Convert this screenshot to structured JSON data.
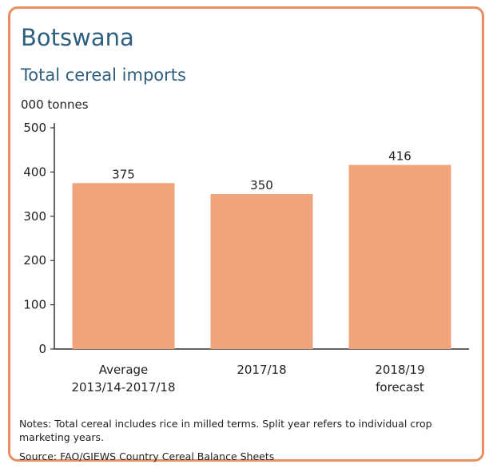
{
  "chart_data": {
    "type": "bar",
    "title": "Botswana",
    "subtitle": "Total cereal imports",
    "unit_label": "000 tonnes",
    "ylim": [
      0,
      500
    ],
    "yticks": [
      0,
      100,
      200,
      300,
      400,
      500
    ],
    "grid": false,
    "categories": [
      [
        "Average",
        "2013/14-2017/18"
      ],
      [
        "2017/18"
      ],
      [
        "2018/19",
        "forecast"
      ]
    ],
    "values": [
      375,
      350,
      416
    ],
    "data_labels": [
      "375",
      "350",
      "416"
    ],
    "bar_color": "#f0a47c"
  },
  "notes": "Notes: Total cereal includes rice in milled terms. Split year refers to individual crop marketing years.",
  "source": "Source: FAO/GIEWS Country Cereal Balance Sheets"
}
